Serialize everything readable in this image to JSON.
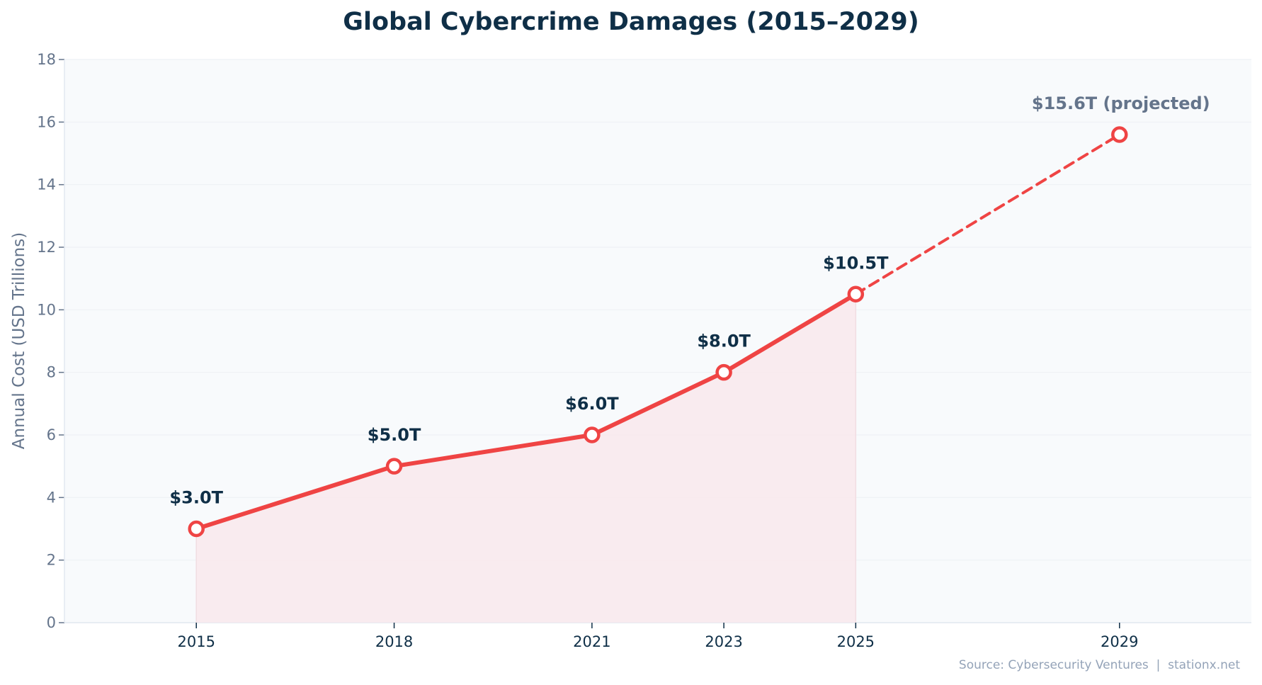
{
  "chart_data": {
    "type": "line",
    "title": "Global Cybercrime Damages (2015–2029)",
    "xlabel": "",
    "ylabel": "Annual Cost (USD Trillions)",
    "xlim": [
      2013,
      2031
    ],
    "ylim": [
      0,
      18
    ],
    "yticks": [
      0,
      2,
      4,
      6,
      8,
      10,
      12,
      14,
      16,
      18
    ],
    "xticks": [
      2015,
      2018,
      2021,
      2023,
      2025,
      2029
    ],
    "grid": true,
    "series": [
      {
        "style": "solid",
        "filled": true,
        "x": [
          2015,
          2018,
          2021,
          2023,
          2025
        ],
        "y": [
          3.0,
          5.0,
          6.0,
          8.0,
          10.5
        ]
      },
      {
        "style": "dashed",
        "filled": false,
        "x": [
          2025,
          2029
        ],
        "y": [
          10.5,
          15.6
        ]
      }
    ],
    "points": [
      {
        "x": 2015,
        "y": 3.0,
        "label": "$3.0T",
        "projected": false
      },
      {
        "x": 2018,
        "y": 5.0,
        "label": "$5.0T",
        "projected": false
      },
      {
        "x": 2021,
        "y": 6.0,
        "label": "$6.0T",
        "projected": false
      },
      {
        "x": 2023,
        "y": 8.0,
        "label": "$8.0T",
        "projected": false
      },
      {
        "x": 2025,
        "y": 10.5,
        "label": "$10.5T",
        "projected": false
      },
      {
        "x": 2029,
        "y": 15.6,
        "label": "$15.6T (projected)",
        "projected": true
      }
    ],
    "source": "Source: Cybersecurity Ventures  |  stationx.net",
    "colors": {
      "line": "#ef4444",
      "fill": "#f9e8ec",
      "plot_bg": "#f8fafc",
      "title": "#0f2f47",
      "label": "#0f2f47",
      "projected_label": "#64748b",
      "tick": "#64748b",
      "source": "#94a3b8"
    }
  }
}
